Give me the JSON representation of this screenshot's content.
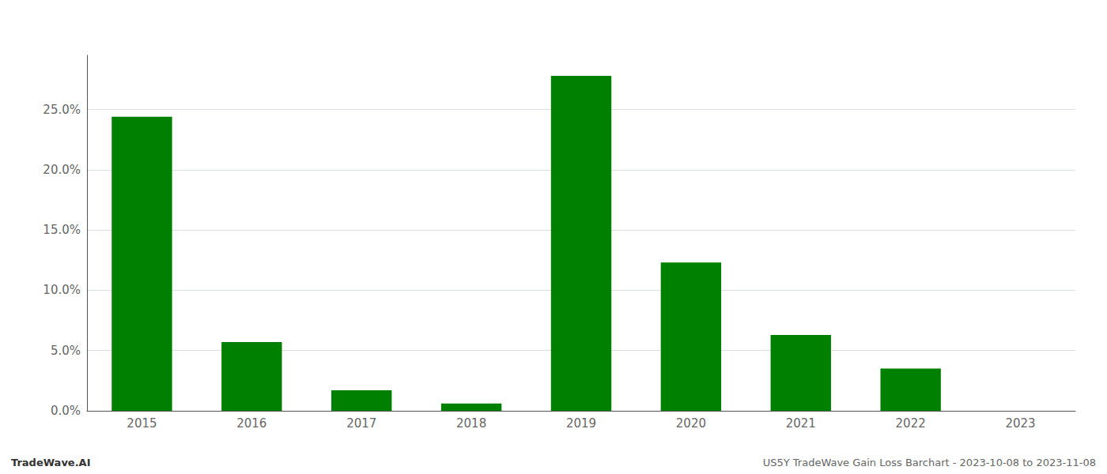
{
  "chart_data": {
    "type": "bar",
    "categories": [
      "2015",
      "2016",
      "2017",
      "2018",
      "2019",
      "2020",
      "2021",
      "2022",
      "2023"
    ],
    "values": [
      0.244,
      0.057,
      0.017,
      0.006,
      0.278,
      0.123,
      0.063,
      0.035,
      0.0
    ],
    "color": "#008000",
    "ylim": [
      0.0,
      0.295
    ],
    "yticks": [
      {
        "value": 0.0,
        "label": "0.0%"
      },
      {
        "value": 0.05,
        "label": "5.0%"
      },
      {
        "value": 0.1,
        "label": "10.0%"
      },
      {
        "value": 0.15,
        "label": "15.0%"
      },
      {
        "value": 0.2,
        "label": "20.0%"
      },
      {
        "value": 0.25,
        "label": "25.0%"
      }
    ],
    "grid": true,
    "annotations": [
      "TradeWave.AI",
      "US5Y TradeWave Gain Loss Barchart - 2023-10-08 to 2023-11-08"
    ]
  }
}
